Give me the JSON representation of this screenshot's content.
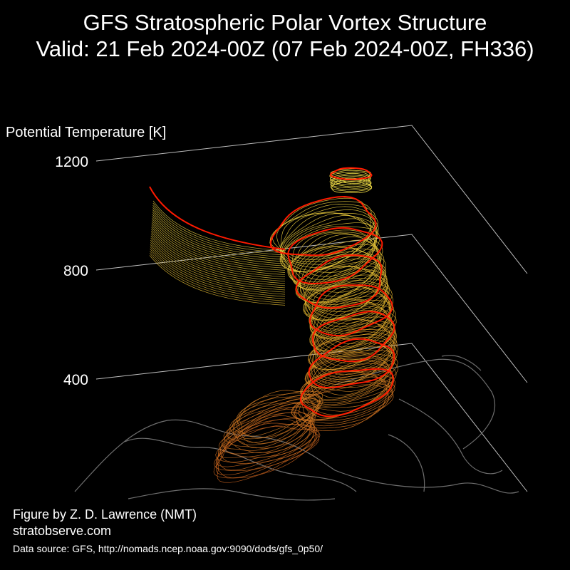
{
  "header": {
    "title_line1": "GFS Stratospheric Polar Vortex Structure",
    "title_line2": "Valid: 21 Feb 2024-00Z  (07 Feb 2024-00Z, FH336)"
  },
  "chart_data": {
    "type": "3d-isosurface",
    "zlabel": "Potential Temperature [K]",
    "zticks": [
      400,
      800,
      1200
    ],
    "zlim": [
      300,
      1250
    ],
    "grid": true,
    "colors": {
      "background": "#000000",
      "grid": "#bdbdbd",
      "coast": "#6e6e6e",
      "low_level": "#c8641e",
      "mid_level": "#d9a82a",
      "high_level": "#e8d040",
      "highlight_contour": "#ff1a00"
    }
  },
  "footer": {
    "credit": "Figure by Z. D. Lawrence (NMT)",
    "site": "stratobserve.com",
    "source": "Data source: GFS, http://nomads.ncep.noaa.gov:9090/dods/gfs_0p50/"
  }
}
